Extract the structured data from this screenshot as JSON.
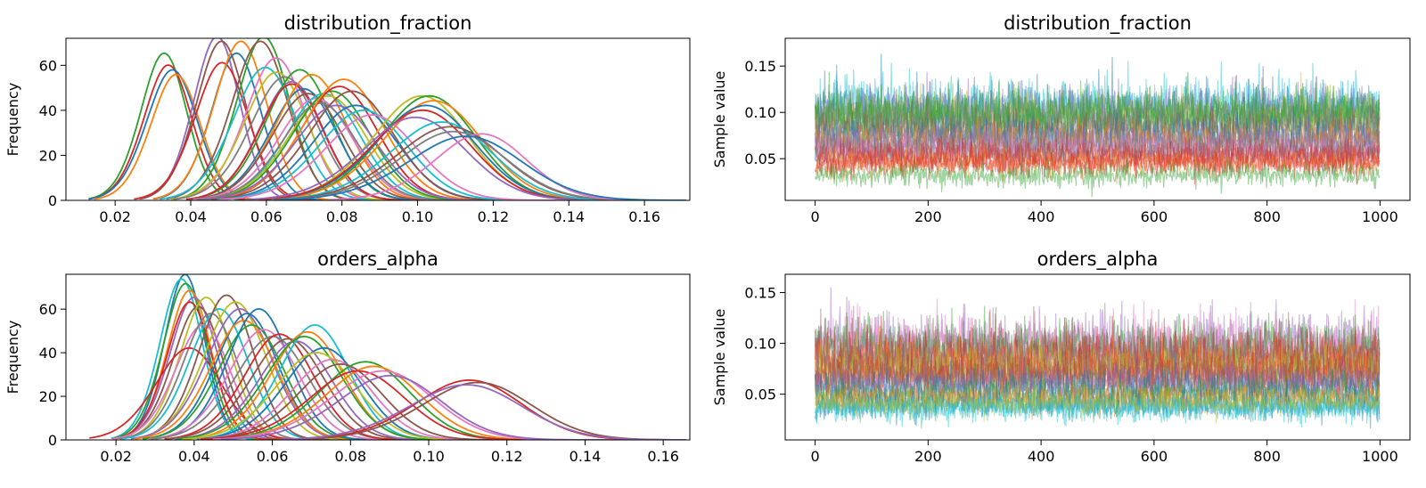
{
  "chart_data": [
    {
      "type": "line",
      "subtype": "kde",
      "title": "distribution_fraction",
      "xlabel": "",
      "ylabel": "Frequency",
      "xlim": [
        0.007,
        0.172
      ],
      "ylim": [
        0,
        72
      ],
      "xticks": [
        "0.02",
        "0.04",
        "0.06",
        "0.08",
        "0.10",
        "0.12",
        "0.14",
        "0.16"
      ],
      "xtick_values": [
        0.02,
        0.04,
        0.06,
        0.08,
        0.1,
        0.12,
        0.14,
        0.16
      ],
      "yticks": [
        "0",
        "20",
        "40",
        "60"
      ],
      "ytick_values": [
        0,
        20,
        40,
        60
      ],
      "grid": false,
      "note": "many overlapping posterior density curves (one per chain/parameter)",
      "series": [
        {
          "color": "#2ca02c",
          "mean": 0.031,
          "sd": 0.0065,
          "peak": 62
        },
        {
          "color": "#d62728",
          "mean": 0.032,
          "sd": 0.0068,
          "peak": 57
        },
        {
          "color": "#1f77b4",
          "mean": 0.033,
          "sd": 0.0072,
          "peak": 55
        },
        {
          "color": "#ff7f0e",
          "mean": 0.034,
          "sd": 0.007,
          "peak": 53
        },
        {
          "color": "#9467bd",
          "mean": 0.045,
          "sd": 0.0065,
          "peak": 69
        },
        {
          "color": "#8c564b",
          "mean": 0.046,
          "sd": 0.007,
          "peak": 67
        },
        {
          "color": "#d62728",
          "mean": 0.046,
          "sd": 0.0075,
          "peak": 58
        },
        {
          "color": "#1f77b4",
          "mean": 0.05,
          "sd": 0.007,
          "peak": 62
        },
        {
          "color": "#ff7f0e",
          "mean": 0.051,
          "sd": 0.0075,
          "peak": 67
        },
        {
          "color": "#2ca02c",
          "mean": 0.057,
          "sd": 0.0075,
          "peak": 69
        },
        {
          "color": "#8c564b",
          "mean": 0.056,
          "sd": 0.008,
          "peak": 67
        },
        {
          "color": "#e377c2",
          "mean": 0.06,
          "sd": 0.0085,
          "peak": 60
        },
        {
          "color": "#17becf",
          "mean": 0.057,
          "sd": 0.009,
          "peak": 56
        },
        {
          "color": "#bcbd22",
          "mean": 0.06,
          "sd": 0.009,
          "peak": 54
        },
        {
          "color": "#7f7f7f",
          "mean": 0.062,
          "sd": 0.0095,
          "peak": 52
        },
        {
          "color": "#9467bd",
          "mean": 0.064,
          "sd": 0.009,
          "peak": 50
        },
        {
          "color": "#2ca02c",
          "mean": 0.066,
          "sd": 0.0095,
          "peak": 55
        },
        {
          "color": "#d62728",
          "mean": 0.064,
          "sd": 0.009,
          "peak": 49
        },
        {
          "color": "#1f77b4",
          "mean": 0.067,
          "sd": 0.0095,
          "peak": 47
        },
        {
          "color": "#ff7f0e",
          "mean": 0.069,
          "sd": 0.01,
          "peak": 53
        },
        {
          "color": "#8c564b",
          "mean": 0.068,
          "sd": 0.01,
          "peak": 45
        },
        {
          "color": "#e377c2",
          "mean": 0.07,
          "sd": 0.0105,
          "peak": 43
        },
        {
          "color": "#17becf",
          "mean": 0.072,
          "sd": 0.0105,
          "peak": 45
        },
        {
          "color": "#bcbd22",
          "mean": 0.073,
          "sd": 0.011,
          "peak": 44
        },
        {
          "color": "#7f7f7f",
          "mean": 0.071,
          "sd": 0.0105,
          "peak": 41
        },
        {
          "color": "#2ca02c",
          "mean": 0.074,
          "sd": 0.011,
          "peak": 46
        },
        {
          "color": "#d62728",
          "mean": 0.076,
          "sd": 0.011,
          "peak": 48
        },
        {
          "color": "#ff7f0e",
          "mean": 0.077,
          "sd": 0.0115,
          "peak": 51
        },
        {
          "color": "#9467bd",
          "mean": 0.075,
          "sd": 0.0115,
          "peak": 40
        },
        {
          "color": "#1f77b4",
          "mean": 0.08,
          "sd": 0.012,
          "peak": 40
        },
        {
          "color": "#8c564b",
          "mean": 0.079,
          "sd": 0.012,
          "peak": 46
        },
        {
          "color": "#17becf",
          "mean": 0.082,
          "sd": 0.0125,
          "peak": 38
        },
        {
          "color": "#e377c2",
          "mean": 0.084,
          "sd": 0.013,
          "peak": 36
        },
        {
          "color": "#bcbd22",
          "mean": 0.097,
          "sd": 0.0135,
          "peak": 44
        },
        {
          "color": "#2ca02c",
          "mean": 0.099,
          "sd": 0.0135,
          "peak": 44
        },
        {
          "color": "#ff7f0e",
          "mean": 0.1,
          "sd": 0.014,
          "peak": 42
        },
        {
          "color": "#1f77b4",
          "mean": 0.098,
          "sd": 0.014,
          "peak": 40
        },
        {
          "color": "#d62728",
          "mean": 0.097,
          "sd": 0.014,
          "peak": 38
        },
        {
          "color": "#9467bd",
          "mean": 0.095,
          "sd": 0.0145,
          "peak": 35
        },
        {
          "color": "#17becf",
          "mean": 0.102,
          "sd": 0.0145,
          "peak": 33
        },
        {
          "color": "#8c564b",
          "mean": 0.104,
          "sd": 0.015,
          "peak": 31
        },
        {
          "color": "#7f7f7f",
          "mean": 0.105,
          "sd": 0.015,
          "peak": 29
        },
        {
          "color": "#e377c2",
          "mean": 0.113,
          "sd": 0.013,
          "peak": 28
        },
        {
          "color": "#1f77b4",
          "mean": 0.108,
          "sd": 0.016,
          "peak": 27
        }
      ]
    },
    {
      "type": "line",
      "subtype": "trace",
      "title": "distribution_fraction",
      "xlabel": "",
      "ylabel": "Sample value",
      "xlim": [
        -53,
        1053
      ],
      "ylim": [
        0.005,
        0.18
      ],
      "xticks": [
        "0",
        "200",
        "400",
        "600",
        "800",
        "1000"
      ],
      "xtick_values": [
        0,
        200,
        400,
        600,
        800,
        1000
      ],
      "yticks": [
        "0.05",
        "0.10",
        "0.15"
      ],
      "ytick_values": [
        0.05,
        0.1,
        0.15
      ],
      "n_samples": 1000,
      "grid": false,
      "note": "overlapping semi-transparent MCMC traces",
      "series": [
        {
          "color": "#17becf",
          "mean": 0.108,
          "sd": 0.015
        },
        {
          "color": "#1f77b4",
          "mean": 0.105,
          "sd": 0.014
        },
        {
          "color": "#9467bd",
          "mean": 0.1,
          "sd": 0.014
        },
        {
          "color": "#bcbd22",
          "mean": 0.098,
          "sd": 0.013
        },
        {
          "color": "#2ca02c",
          "mean": 0.1,
          "sd": 0.013
        },
        {
          "color": "#2ca02c",
          "mean": 0.092,
          "sd": 0.012
        },
        {
          "color": "#7f7f7f",
          "mean": 0.085,
          "sd": 0.012
        },
        {
          "color": "#8c564b",
          "mean": 0.078,
          "sd": 0.011
        },
        {
          "color": "#1f77b4",
          "mean": 0.072,
          "sd": 0.011
        },
        {
          "color": "#ff7f0e",
          "mean": 0.068,
          "sd": 0.01
        },
        {
          "color": "#9467bd",
          "mean": 0.066,
          "sd": 0.01
        },
        {
          "color": "#7f7f7f",
          "mean": 0.062,
          "sd": 0.009
        },
        {
          "color": "#e377c2",
          "mean": 0.058,
          "sd": 0.009
        },
        {
          "color": "#8c564b",
          "mean": 0.055,
          "sd": 0.008
        },
        {
          "color": "#d62728",
          "mean": 0.052,
          "sd": 0.008
        },
        {
          "color": "#ff7f0e",
          "mean": 0.045,
          "sd": 0.007
        },
        {
          "color": "#d62728",
          "mean": 0.045,
          "sd": 0.007
        },
        {
          "color": "#2ca02c",
          "mean": 0.032,
          "sd": 0.006
        }
      ]
    },
    {
      "type": "line",
      "subtype": "kde",
      "title": "orders_alpha",
      "xlabel": "",
      "ylabel": "Frequency",
      "xlim": [
        0.0072,
        0.1668
      ],
      "ylim": [
        0,
        76
      ],
      "xticks": [
        "0.02",
        "0.04",
        "0.06",
        "0.08",
        "0.10",
        "0.12",
        "0.14",
        "0.16"
      ],
      "xtick_values": [
        0.02,
        0.04,
        0.06,
        0.08,
        0.1,
        0.12,
        0.14,
        0.16
      ],
      "yticks": [
        "0",
        "20",
        "40",
        "60"
      ],
      "ytick_values": [
        0,
        20,
        40,
        60
      ],
      "grid": false,
      "note": "many overlapping posterior density curves (one per chain/parameter)",
      "series": [
        {
          "color": "#1f77b4",
          "mean": 0.036,
          "sd": 0.0055,
          "peak": 72
        },
        {
          "color": "#17becf",
          "mean": 0.035,
          "sd": 0.0058,
          "peak": 70
        },
        {
          "color": "#2ca02c",
          "mean": 0.036,
          "sd": 0.006,
          "peak": 68
        },
        {
          "color": "#ff7f0e",
          "mean": 0.037,
          "sd": 0.006,
          "peak": 65
        },
        {
          "color": "#9467bd",
          "mean": 0.038,
          "sd": 0.0065,
          "peak": 62
        },
        {
          "color": "#d62728",
          "mean": 0.037,
          "sd": 0.0062,
          "peak": 60
        },
        {
          "color": "#8c564b",
          "mean": 0.039,
          "sd": 0.0068,
          "peak": 58
        },
        {
          "color": "#bcbd22",
          "mean": 0.041,
          "sd": 0.007,
          "peak": 62
        },
        {
          "color": "#e377c2",
          "mean": 0.04,
          "sd": 0.0075,
          "peak": 50
        },
        {
          "color": "#7f7f7f",
          "mean": 0.042,
          "sd": 0.0075,
          "peak": 55
        },
        {
          "color": "#d62728",
          "mean": 0.036,
          "sd": 0.009,
          "peak": 40
        },
        {
          "color": "#17becf",
          "mean": 0.044,
          "sd": 0.008,
          "peak": 57
        },
        {
          "color": "#8c564b",
          "mean": 0.046,
          "sd": 0.0075,
          "peak": 63
        },
        {
          "color": "#bcbd22",
          "mean": 0.048,
          "sd": 0.0085,
          "peak": 60
        },
        {
          "color": "#9467bd",
          "mean": 0.049,
          "sd": 0.009,
          "peak": 57
        },
        {
          "color": "#1f77b4",
          "mean": 0.051,
          "sd": 0.0085,
          "peak": 55
        },
        {
          "color": "#ff7f0e",
          "mean": 0.05,
          "sd": 0.009,
          "peak": 52
        },
        {
          "color": "#2ca02c",
          "mean": 0.052,
          "sd": 0.009,
          "peak": 50
        },
        {
          "color": "#1f77b4",
          "mean": 0.054,
          "sd": 0.0085,
          "peak": 57
        },
        {
          "color": "#e377c2",
          "mean": 0.055,
          "sd": 0.0095,
          "peak": 48
        },
        {
          "color": "#7f7f7f",
          "mean": 0.057,
          "sd": 0.01,
          "peak": 45
        },
        {
          "color": "#d62728",
          "mean": 0.059,
          "sd": 0.0095,
          "peak": 46
        },
        {
          "color": "#8c564b",
          "mean": 0.061,
          "sd": 0.01,
          "peak": 44
        },
        {
          "color": "#9467bd",
          "mean": 0.063,
          "sd": 0.01,
          "peak": 43
        },
        {
          "color": "#17becf",
          "mean": 0.068,
          "sd": 0.0095,
          "peak": 50
        },
        {
          "color": "#ff7f0e",
          "mean": 0.066,
          "sd": 0.01,
          "peak": 47
        },
        {
          "color": "#2ca02c",
          "mean": 0.065,
          "sd": 0.0105,
          "peak": 45
        },
        {
          "color": "#1f77b4",
          "mean": 0.07,
          "sd": 0.0105,
          "peak": 40
        },
        {
          "color": "#bcbd22",
          "mean": 0.068,
          "sd": 0.011,
          "peak": 38
        },
        {
          "color": "#e377c2",
          "mean": 0.072,
          "sd": 0.011,
          "peak": 35
        },
        {
          "color": "#8c564b",
          "mean": 0.074,
          "sd": 0.0115,
          "peak": 33
        },
        {
          "color": "#2ca02c",
          "mean": 0.08,
          "sd": 0.0125,
          "peak": 34
        },
        {
          "color": "#ff7f0e",
          "mean": 0.082,
          "sd": 0.013,
          "peak": 32
        },
        {
          "color": "#d62728",
          "mean": 0.078,
          "sd": 0.013,
          "peak": 30
        },
        {
          "color": "#e377c2",
          "mean": 0.084,
          "sd": 0.014,
          "peak": 30
        },
        {
          "color": "#9467bd",
          "mean": 0.086,
          "sd": 0.014,
          "peak": 28
        },
        {
          "color": "#d62728",
          "mean": 0.106,
          "sd": 0.0145,
          "peak": 26
        },
        {
          "color": "#8c564b",
          "mean": 0.108,
          "sd": 0.015,
          "peak": 25
        },
        {
          "color": "#9467bd",
          "mean": 0.105,
          "sd": 0.0155,
          "peak": 24
        }
      ]
    },
    {
      "type": "line",
      "subtype": "trace",
      "title": "orders_alpha",
      "xlabel": "",
      "ylabel": "Sample value",
      "xlim": [
        -53,
        1053
      ],
      "ylim": [
        0.005,
        0.168
      ],
      "xticks": [
        "0",
        "200",
        "400",
        "600",
        "800",
        "1000"
      ],
      "xtick_values": [
        0,
        200,
        400,
        600,
        800,
        1000
      ],
      "yticks": [
        "0.05",
        "0.10",
        "0.15"
      ],
      "ytick_values": [
        0.05,
        0.1,
        0.15
      ],
      "n_samples": 1000,
      "grid": false,
      "note": "overlapping semi-transparent MCMC traces",
      "series": [
        {
          "color": "#9467bd",
          "mean": 0.1,
          "sd": 0.016
        },
        {
          "color": "#e377c2",
          "mean": 0.098,
          "sd": 0.015
        },
        {
          "color": "#2ca02c",
          "mean": 0.095,
          "sd": 0.015
        },
        {
          "color": "#8c564b",
          "mean": 0.09,
          "sd": 0.014
        },
        {
          "color": "#d62728",
          "mean": 0.085,
          "sd": 0.013
        },
        {
          "color": "#ff7f0e",
          "mean": 0.08,
          "sd": 0.012
        },
        {
          "color": "#7f7f7f",
          "mean": 0.078,
          "sd": 0.012
        },
        {
          "color": "#bcbd22",
          "mean": 0.074,
          "sd": 0.011
        },
        {
          "color": "#d62728",
          "mean": 0.07,
          "sd": 0.011
        },
        {
          "color": "#8c564b",
          "mean": 0.066,
          "sd": 0.01
        },
        {
          "color": "#9467bd",
          "mean": 0.06,
          "sd": 0.01
        },
        {
          "color": "#1f77b4",
          "mean": 0.055,
          "sd": 0.009
        },
        {
          "color": "#2ca02c",
          "mean": 0.05,
          "sd": 0.008
        },
        {
          "color": "#ff7f0e",
          "mean": 0.046,
          "sd": 0.007
        },
        {
          "color": "#1f77b4",
          "mean": 0.04,
          "sd": 0.007
        },
        {
          "color": "#17becf",
          "mean": 0.038,
          "sd": 0.006
        },
        {
          "color": "#17becf",
          "mean": 0.036,
          "sd": 0.006
        },
        {
          "color": "#bcbd22",
          "mean": 0.042,
          "sd": 0.006
        }
      ]
    }
  ]
}
